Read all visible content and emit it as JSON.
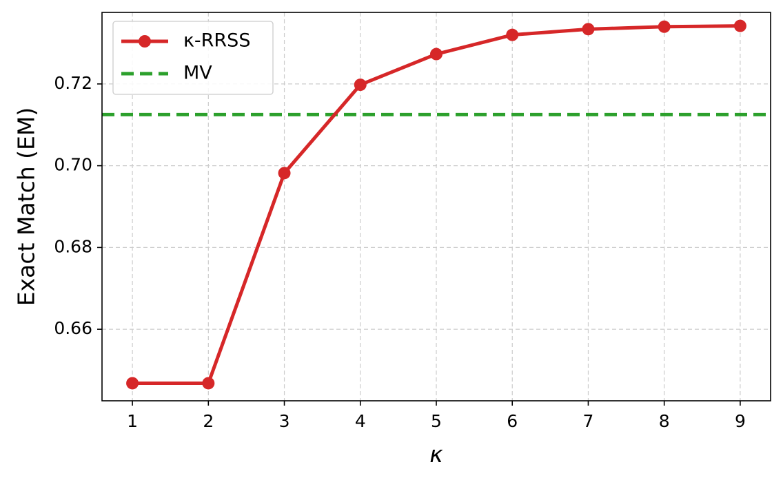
{
  "chart_data": {
    "type": "line",
    "title": "",
    "xlabel": "κ",
    "ylabel": "Exact Match (EM)",
    "x": [
      1,
      2,
      3,
      4,
      5,
      6,
      7,
      8,
      9
    ],
    "xlim": [
      0.6,
      9.4
    ],
    "ylim": [
      0.6425,
      0.7375
    ],
    "xticks": [
      1,
      2,
      3,
      4,
      5,
      6,
      7,
      8,
      9
    ],
    "yticks": [
      0.66,
      0.68,
      0.7,
      0.72
    ],
    "ytick_labels": [
      "0.66",
      "0.68",
      "0.70",
      "0.72"
    ],
    "grid": true,
    "legend_position": "top-left",
    "series": [
      {
        "name": "κ-RRSS",
        "style": "solid-markers",
        "color": "#d62728",
        "values": [
          0.6468,
          0.6468,
          0.6982,
          0.7198,
          0.7273,
          0.732,
          0.7334,
          0.734,
          0.7342
        ]
      },
      {
        "name": "MV",
        "style": "dashed-horizontal",
        "color": "#2ca02c",
        "value": 0.7125
      }
    ]
  }
}
